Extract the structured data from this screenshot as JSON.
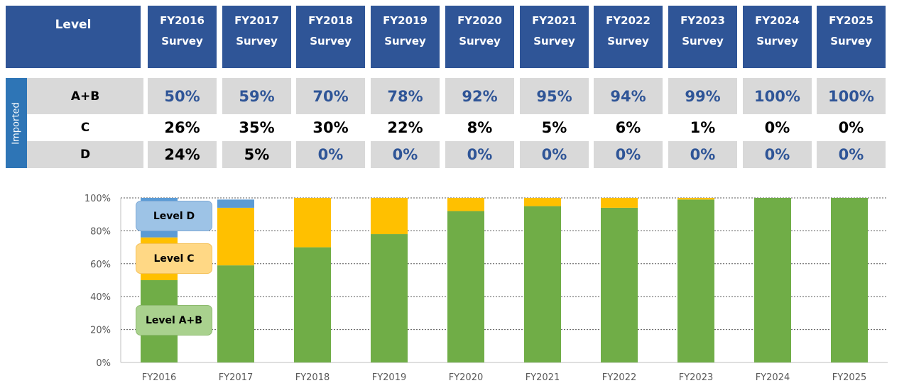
{
  "table": {
    "level_header": "Level",
    "survey_word": "Survey",
    "years": [
      "FY2016",
      "FY2017",
      "FY2018",
      "FY2019",
      "FY2020",
      "FY2021",
      "FY2022",
      "FY2023",
      "FY2024",
      "FY2025"
    ],
    "group_label": "Imported",
    "rows": [
      {
        "label": "A+B",
        "values": [
          "50%",
          "59%",
          "70%",
          "78%",
          "92%",
          "95%",
          "94%",
          "99%",
          "100%",
          "100%"
        ]
      },
      {
        "label": "C",
        "values": [
          "26%",
          "35%",
          "30%",
          "22%",
          "8%",
          "5%",
          "6%",
          "1%",
          "0%",
          "0%"
        ]
      },
      {
        "label": "D",
        "values": [
          "24%",
          "5%",
          "0%",
          "0%",
          "0%",
          "0%",
          "0%",
          "0%",
          "0%",
          "0%"
        ]
      }
    ]
  },
  "legend": {
    "level_d": "Level D",
    "level_c": "Level C",
    "level_ab": "Level A+B"
  },
  "colors": {
    "header_blue": "#2F5597",
    "imported_blue": "#2E75B6",
    "gray": "#D9D9D9",
    "ab_green": "#70AD47",
    "c_yellow": "#FFC000",
    "d_blue": "#5B9BD5"
  },
  "chart_data": {
    "type": "bar",
    "stacked": true,
    "categories": [
      "FY2016",
      "FY2017",
      "FY2018",
      "FY2019",
      "FY2020",
      "FY2021",
      "FY2022",
      "FY2023",
      "FY2024",
      "FY2025"
    ],
    "series": [
      {
        "name": "Level A+B",
        "color": "#70AD47",
        "values": [
          50,
          59,
          70,
          78,
          92,
          95,
          94,
          99,
          100,
          100
        ]
      },
      {
        "name": "Level C",
        "color": "#FFC000",
        "values": [
          26,
          35,
          30,
          22,
          8,
          5,
          6,
          1,
          0,
          0
        ]
      },
      {
        "name": "Level D",
        "color": "#5B9BD5",
        "values": [
          24,
          5,
          0,
          0,
          0,
          0,
          0,
          0,
          0,
          0
        ]
      }
    ],
    "yticks": [
      "0%",
      "20%",
      "40%",
      "60%",
      "80%",
      "100%"
    ],
    "ylim": [
      0,
      100
    ],
    "grid": true,
    "legend_position": "inside-left"
  }
}
